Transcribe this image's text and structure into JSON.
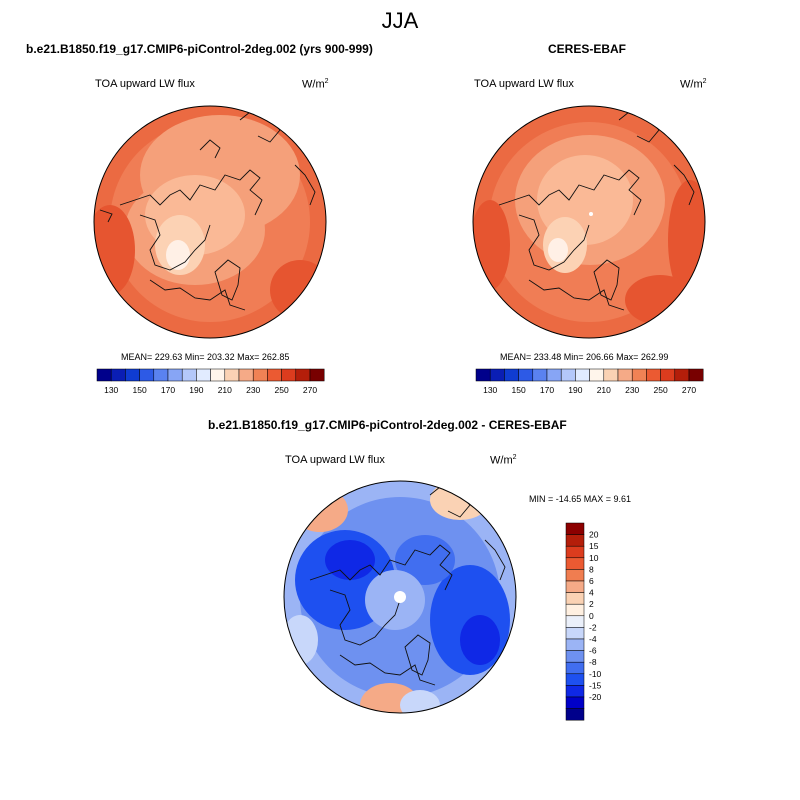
{
  "title": "JJA",
  "panels": [
    {
      "title": "b.e21.B1850.f19_g17.CMIP6-piControl-2deg.002 (yrs 900-999)",
      "field": "TOA upward LW flux",
      "units_base": "W/m",
      "units_exp": "2",
      "stats": "MEAN= 229.63  Min= 203.32  Max= 262.85"
    },
    {
      "title": "CERES-EBAF",
      "field": "TOA upward LW flux",
      "units_base": "W/m",
      "units_exp": "2",
      "stats": "MEAN= 233.48  Min= 206.66  Max= 262.99"
    },
    {
      "title": "b.e21.B1850.f19_g17.CMIP6-piControl-2deg.002 - CERES-EBAF",
      "field": "TOA upward LW flux",
      "units_base": "W/m",
      "units_exp": "2",
      "stats": "MIN = -14.65 MAX =   9.61"
    }
  ],
  "abs_colorbar": {
    "colors": [
      "#00008b",
      "#0a1eb4",
      "#0f3cd2",
      "#2d5ae6",
      "#5a82f0",
      "#87a5f5",
      "#b4c8fa",
      "#e1ebff",
      "#fff5eb",
      "#fad2b4",
      "#f5aa87",
      "#f08255",
      "#eb5a32",
      "#dc3c1e",
      "#b41e0a",
      "#780000"
    ],
    "labels": [
      "130",
      "150",
      "170",
      "190",
      "210",
      "230",
      "250",
      "270"
    ]
  },
  "diff_colorbar": {
    "colors": [
      "#00008b",
      "#0000c8",
      "#0f28e6",
      "#1e50f0",
      "#416ef0",
      "#6e91f0",
      "#9bb4f5",
      "#c8d7fa",
      "#ebf0fa",
      "#fff0e1",
      "#fad2b4",
      "#f5aa87",
      "#f07d50",
      "#eb5a32",
      "#dc3c1e",
      "#b41e0a",
      "#8c0000"
    ],
    "labels": [
      "20",
      "15",
      "10",
      "8",
      "6",
      "4",
      "2",
      "0",
      "-2",
      "-4",
      "-6",
      "-8",
      "-10",
      "-15",
      "-20"
    ]
  }
}
